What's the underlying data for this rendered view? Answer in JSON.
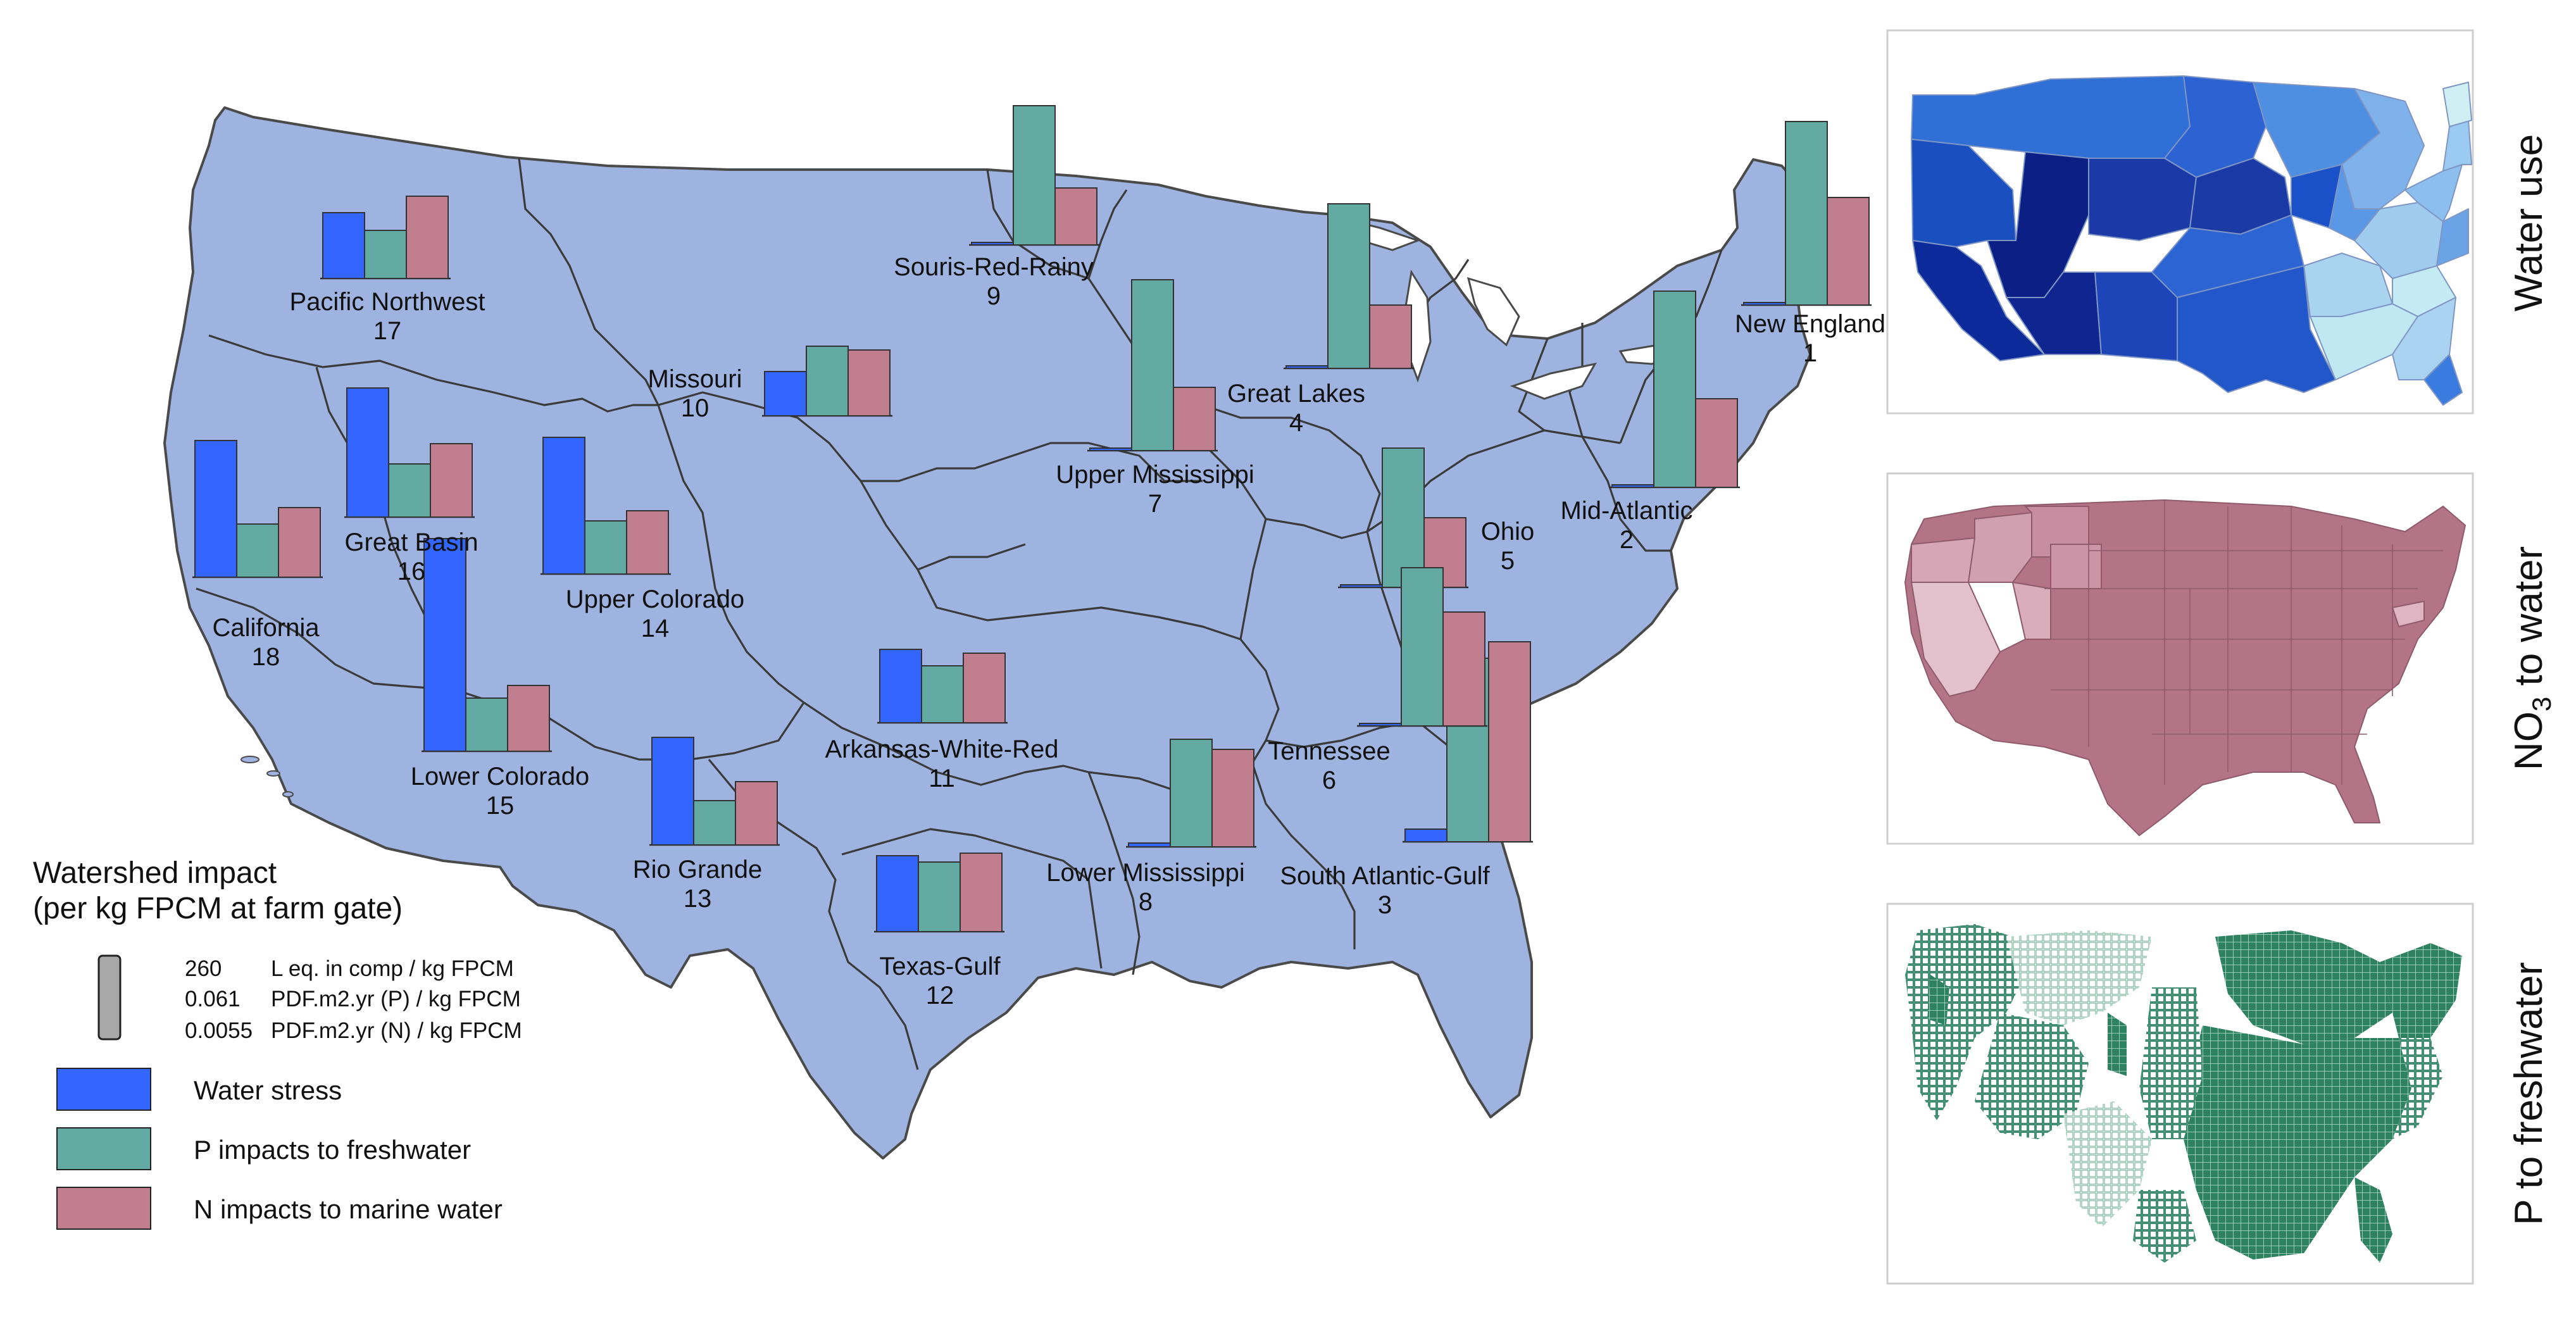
{
  "colors": {
    "water_stress": "#3366ff",
    "p_impacts": "#63aaa3",
    "n_impacts": "#c07e8e",
    "basemap": "#9eb3df",
    "border": "#3c3c3c",
    "nitrate_map": "#b47488",
    "phosphorus_map": "#2e8262"
  },
  "legend": {
    "title_line1": "Watershed impact",
    "title_line2": "(per kg FPCM at farm gate)",
    "scale": [
      {
        "value": "260",
        "unit": "L eq. in comp / kg FPCM"
      },
      {
        "value": "0.061",
        "unit": "PDF.m2.yr (P) / kg FPCM"
      },
      {
        "value": "0.0055",
        "unit": "PDF.m2.yr (N) / kg FPCM"
      }
    ],
    "items": [
      {
        "key": "water_stress",
        "label": "Water stress"
      },
      {
        "key": "p_impacts",
        "label": "P impacts to freshwater"
      },
      {
        "key": "n_impacts",
        "label": "N impacts to marine water"
      }
    ]
  },
  "regions": [
    {
      "id": "1",
      "name": "New England",
      "water": 0.02,
      "p": 1.45,
      "n": 0.85
    },
    {
      "id": "2",
      "name": "Mid-Atlantic",
      "water": 0.02,
      "p": 1.55,
      "n": 0.7
    },
    {
      "id": "3",
      "name": "South Atlantic-Gulf",
      "water": 0.1,
      "p": 1.45,
      "n": 1.58
    },
    {
      "id": "4",
      "name": "Great Lakes",
      "water": 0.02,
      "p": 1.3,
      "n": 0.5
    },
    {
      "id": "5",
      "name": "Ohio",
      "water": 0.02,
      "p": 1.1,
      "n": 0.55
    },
    {
      "id": "6",
      "name": "Tennessee",
      "water": 0.02,
      "p": 1.25,
      "n": 0.9
    },
    {
      "id": "7",
      "name": "Upper Mississippi",
      "water": 0.02,
      "p": 1.35,
      "n": 0.5
    },
    {
      "id": "8",
      "name": "Lower Mississippi",
      "water": 0.03,
      "p": 0.85,
      "n": 0.77
    },
    {
      "id": "9",
      "name": "Souris-Red-Rainy",
      "water": 0.02,
      "p": 1.1,
      "n": 0.45
    },
    {
      "id": "10",
      "name": "Missouri",
      "water": 0.35,
      "p": 0.55,
      "n": 0.52
    },
    {
      "id": "11",
      "name": "Arkansas-White-Red",
      "water": 0.58,
      "p": 0.45,
      "n": 0.55
    },
    {
      "id": "12",
      "name": "Texas-Gulf",
      "water": 0.6,
      "p": 0.55,
      "n": 0.62
    },
    {
      "id": "13",
      "name": "Rio Grande",
      "water": 0.85,
      "p": 0.35,
      "n": 0.5
    },
    {
      "id": "14",
      "name": "Upper Colorado",
      "water": 1.08,
      "p": 0.42,
      "n": 0.5
    },
    {
      "id": "15",
      "name": "Lower Colorado",
      "water": 1.68,
      "p": 0.42,
      "n": 0.52
    },
    {
      "id": "16",
      "name": "Great Basin",
      "water": 1.02,
      "p": 0.42,
      "n": 0.58
    },
    {
      "id": "17",
      "name": "Pacific Northwest",
      "water": 0.52,
      "p": 0.38,
      "n": 0.65
    },
    {
      "id": "18",
      "name": "California",
      "water": 1.08,
      "p": 0.42,
      "n": 0.55
    }
  ],
  "insets": [
    {
      "label": "Water use"
    },
    {
      "label_main": "NO",
      "label_sub": "3",
      "label_rest": " to water"
    },
    {
      "label": "P to freshwater"
    }
  ]
}
